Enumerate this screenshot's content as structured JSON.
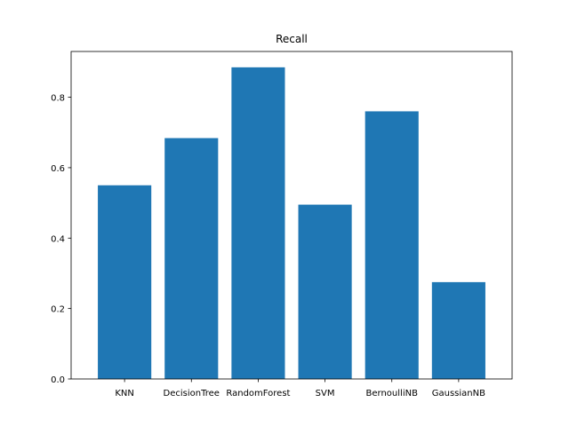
{
  "chart_data": {
    "type": "bar",
    "title": "Recall",
    "xlabel": "",
    "ylabel": "",
    "categories": [
      "KNN",
      "DecisionTree",
      "RandomForest",
      "SVM",
      "BernoulliNB",
      "GaussianNB"
    ],
    "values": [
      0.55,
      0.684,
      0.885,
      0.495,
      0.76,
      0.275
    ],
    "ylim": [
      0,
      0.93
    ],
    "yticks": [
      0.0,
      0.2,
      0.4,
      0.6,
      0.8
    ],
    "ytick_labels": [
      "0.0",
      "0.2",
      "0.4",
      "0.6",
      "0.8"
    ],
    "grid": false,
    "bar_color": "#1f77b4",
    "axis_color": "#000000"
  }
}
